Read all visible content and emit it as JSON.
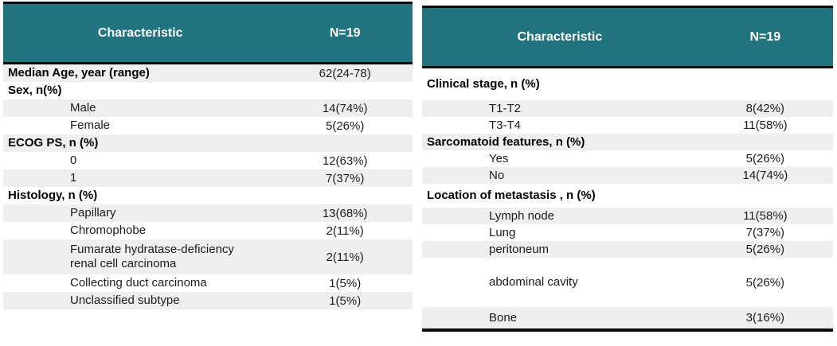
{
  "theme": {
    "header_bg": "#21737D",
    "header_text": "#ffffff",
    "stripe": "#efefef",
    "rule": "#0a0a0a"
  },
  "tables": [
    {
      "id": "patient-demographics",
      "header": {
        "characteristic": "Characteristic",
        "n": "N=19"
      },
      "rows": [
        {
          "label": "Median Age, year (range)",
          "value": "62(24-78)",
          "bold": true,
          "shade": true
        },
        {
          "label": "Sex, n(%)",
          "value": "",
          "bold": true
        },
        {
          "label": "Male",
          "value": "14(74%)",
          "indent": true,
          "shade": true
        },
        {
          "label": "Female",
          "value": "5(26%)",
          "indent": true
        },
        {
          "label": "ECOG PS, n (%)",
          "value": "",
          "bold": true,
          "shade": true
        },
        {
          "label": "0",
          "value": "12(63%)",
          "indent": true
        },
        {
          "label": "1",
          "value": "7(37%)",
          "indent": true,
          "shade": true
        },
        {
          "label": "Histology, n (%)",
          "value": "",
          "bold": true
        },
        {
          "label": "Papillary",
          "value": "13(68%)",
          "indent": true,
          "shade": true
        },
        {
          "label": "Chromophobe",
          "value": "2(11%)",
          "indent": true
        },
        {
          "label": "Fumarate hydratase-deficiency\nrenal cell carcinoma",
          "value": "2(11%)",
          "indent": true,
          "shade": true,
          "variant": "row-double"
        },
        {
          "label": "Collecting duct carcinoma",
          "value": "1(5%)",
          "indent": true
        },
        {
          "label": "Unclassified subtype",
          "value": "1(5%)",
          "indent": true,
          "shade": true
        }
      ]
    },
    {
      "id": "disease-characteristics",
      "header": {
        "characteristic": "Characteristic",
        "n": "N=19"
      },
      "rows": [
        {
          "label": "Clinical stage, n (%)",
          "value": "",
          "bold": true,
          "variant": "row-section-lg"
        },
        {
          "label": "T1-T2",
          "value": "8(42%)",
          "indent": true,
          "shade": true
        },
        {
          "label": "T3-T4",
          "value": "11(58%)",
          "indent": true
        },
        {
          "label": "Sarcomatoid features, n (%)",
          "value": "",
          "bold": true,
          "shade": true
        },
        {
          "label": "Yes",
          "value": "5(26%)",
          "indent": true
        },
        {
          "label": "No",
          "value": "14(74%)",
          "indent": true,
          "shade": true
        },
        {
          "label": "Location of metastasis , n (%)",
          "value": "",
          "bold": true,
          "variant": "row-section-md"
        },
        {
          "label": "Lymph node",
          "value": "11(58%)",
          "indent": true,
          "shade": true
        },
        {
          "label": "Lung",
          "value": "7(37%)",
          "indent": true
        },
        {
          "label": "peritoneum",
          "value": "5(26%)",
          "indent": true,
          "shade": true
        },
        {
          "label": "abdominal cavity",
          "value": "5(26%)",
          "indent": true,
          "variant": "row-tall"
        },
        {
          "label": "Bone",
          "value": "3(16%)",
          "indent": true,
          "shade": true,
          "variant": "row-last"
        }
      ]
    }
  ]
}
